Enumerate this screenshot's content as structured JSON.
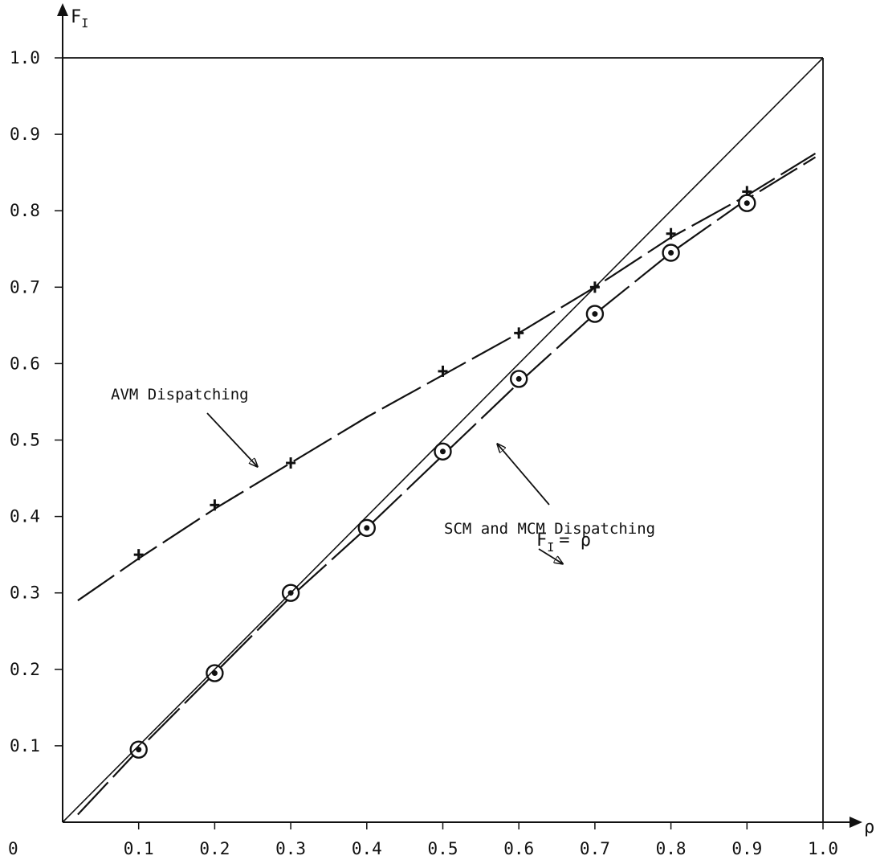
{
  "chart_data": {
    "type": "line",
    "title": "",
    "xlabel": "ρ",
    "ylabel": {
      "main": "F",
      "sub": "I"
    },
    "origin_label": "0",
    "xlim": [
      0,
      1.0
    ],
    "ylim": [
      0,
      1.0
    ],
    "x_ticks": [
      "0.1",
      "0.2",
      "0.3",
      "0.4",
      "0.5",
      "0.6",
      "0.7",
      "0.8",
      "0.9",
      "1.0"
    ],
    "y_ticks": [
      "0.1",
      "0.2",
      "0.3",
      "0.4",
      "0.5",
      "0.6",
      "0.7",
      "0.8",
      "0.9",
      "1.0"
    ],
    "grid": false,
    "series": [
      {
        "name": "AVM Dispatching",
        "marker": "plus",
        "line": "dashed",
        "x": [
          0.1,
          0.2,
          0.3,
          0.5,
          0.6,
          0.7,
          0.8,
          0.9
        ],
        "y": [
          0.35,
          0.415,
          0.47,
          0.59,
          0.64,
          0.7,
          0.77,
          0.825
        ],
        "curve_x": [
          0.02,
          0.1,
          0.2,
          0.3,
          0.4,
          0.5,
          0.6,
          0.7,
          0.8,
          0.9,
          0.99
        ],
        "curve_y": [
          0.29,
          0.345,
          0.41,
          0.47,
          0.53,
          0.585,
          0.64,
          0.7,
          0.765,
          0.82,
          0.875
        ]
      },
      {
        "name": "SCM and MCM Dispatching",
        "marker": "circle",
        "line": "dashed",
        "x": [
          0.1,
          0.2,
          0.3,
          0.4,
          0.5,
          0.6,
          0.7,
          0.8,
          0.9
        ],
        "y": [
          0.095,
          0.195,
          0.3,
          0.385,
          0.485,
          0.58,
          0.665,
          0.745,
          0.81
        ],
        "curve_x": [
          0.02,
          0.1,
          0.2,
          0.3,
          0.4,
          0.5,
          0.6,
          0.7,
          0.8,
          0.9,
          0.99
        ],
        "curve_y": [
          0.01,
          0.095,
          0.195,
          0.295,
          0.385,
          0.48,
          0.575,
          0.665,
          0.745,
          0.815,
          0.87
        ]
      },
      {
        "name": "F_I = ρ",
        "marker": "none",
        "line": "solid",
        "x": [
          0.0,
          1.0
        ],
        "y": [
          0.0,
          1.0
        ]
      }
    ],
    "annotations": [
      {
        "text": "AVM Dispatching"
      },
      {
        "text": "SCM and MCM Dispatching"
      },
      {
        "text_main": "F",
        "text_sub": "I",
        "text_rest": "= ρ"
      }
    ]
  }
}
